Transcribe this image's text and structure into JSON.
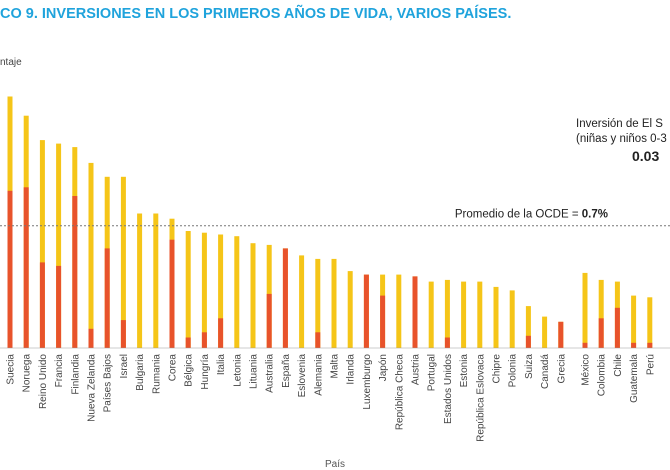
{
  "chart_data": {
    "type": "bar",
    "title": "CO 9. INVERSIONES EN LOS PRIMEROS AÑOS DE VIDA, VARIOS PAÍSES.",
    "ylabel": "ntaje",
    "xlabel": "País",
    "ylim": [
      0,
      1.5
    ],
    "grid": false,
    "series": [
      {
        "color": "#f5c518"
      },
      {
        "color": "#e8532b"
      }
    ],
    "categories": [
      "Suecia",
      "Noruega",
      "Reino Unido",
      "Francia",
      "Finlandia",
      "Nueva Zelanda",
      "Países Bajos",
      "Israel",
      "Bulgaria",
      "Rumania",
      "Corea",
      "Bélgica",
      "Hungría",
      "Italia",
      "Letonia",
      "Lituania",
      "Australia",
      "España",
      "Eslovenia",
      "Alemania",
      "Malta",
      "Irlanda",
      "Luxemburgo",
      "Japón",
      "República Checa",
      "Austria",
      "Portugal",
      "Estados Unidos",
      "Estonia",
      "República Eslovaca",
      "Chipre",
      "Polonia",
      "Suiza",
      "Canadá",
      "Grecia",
      "México",
      "Colombia",
      "Chile",
      "Guatemala",
      "Perú"
    ],
    "total": [
      1.44,
      1.33,
      1.19,
      1.17,
      1.15,
      1.06,
      0.98,
      0.98,
      0.77,
      0.77,
      0.74,
      0.67,
      0.66,
      0.65,
      0.64,
      0.6,
      0.59,
      0.57,
      0.53,
      0.51,
      0.51,
      0.44,
      0.42,
      0.42,
      0.42,
      0.41,
      0.38,
      0.39,
      0.38,
      0.38,
      0.35,
      0.33,
      0.24,
      0.18,
      0.15,
      0.43,
      0.39,
      0.38,
      0.3,
      0.29
    ],
    "early": [
      0.9,
      0.92,
      0.49,
      0.47,
      0.87,
      0.11,
      0.57,
      0.16,
      0.0,
      0.0,
      0.62,
      0.06,
      0.09,
      0.17,
      0.0,
      0.0,
      0.31,
      0.57,
      0.0,
      0.09,
      0.0,
      0.0,
      0.42,
      0.3,
      0.0,
      0.41,
      0.0,
      0.06,
      0.0,
      0.0,
      0.0,
      0.0,
      0.07,
      0.0,
      0.15,
      0.03,
      0.17,
      0.23,
      0.03,
      0.03
    ],
    "annotations": {
      "oecd_line_value": 0.7,
      "oecd_label": "Promedio de la OCDE = ",
      "oecd_value_label": "0.7%",
      "sv_line1": "Inversión de El S",
      "sv_line2": "(niñas y niños 0-3",
      "sv_value": "0.03"
    }
  }
}
